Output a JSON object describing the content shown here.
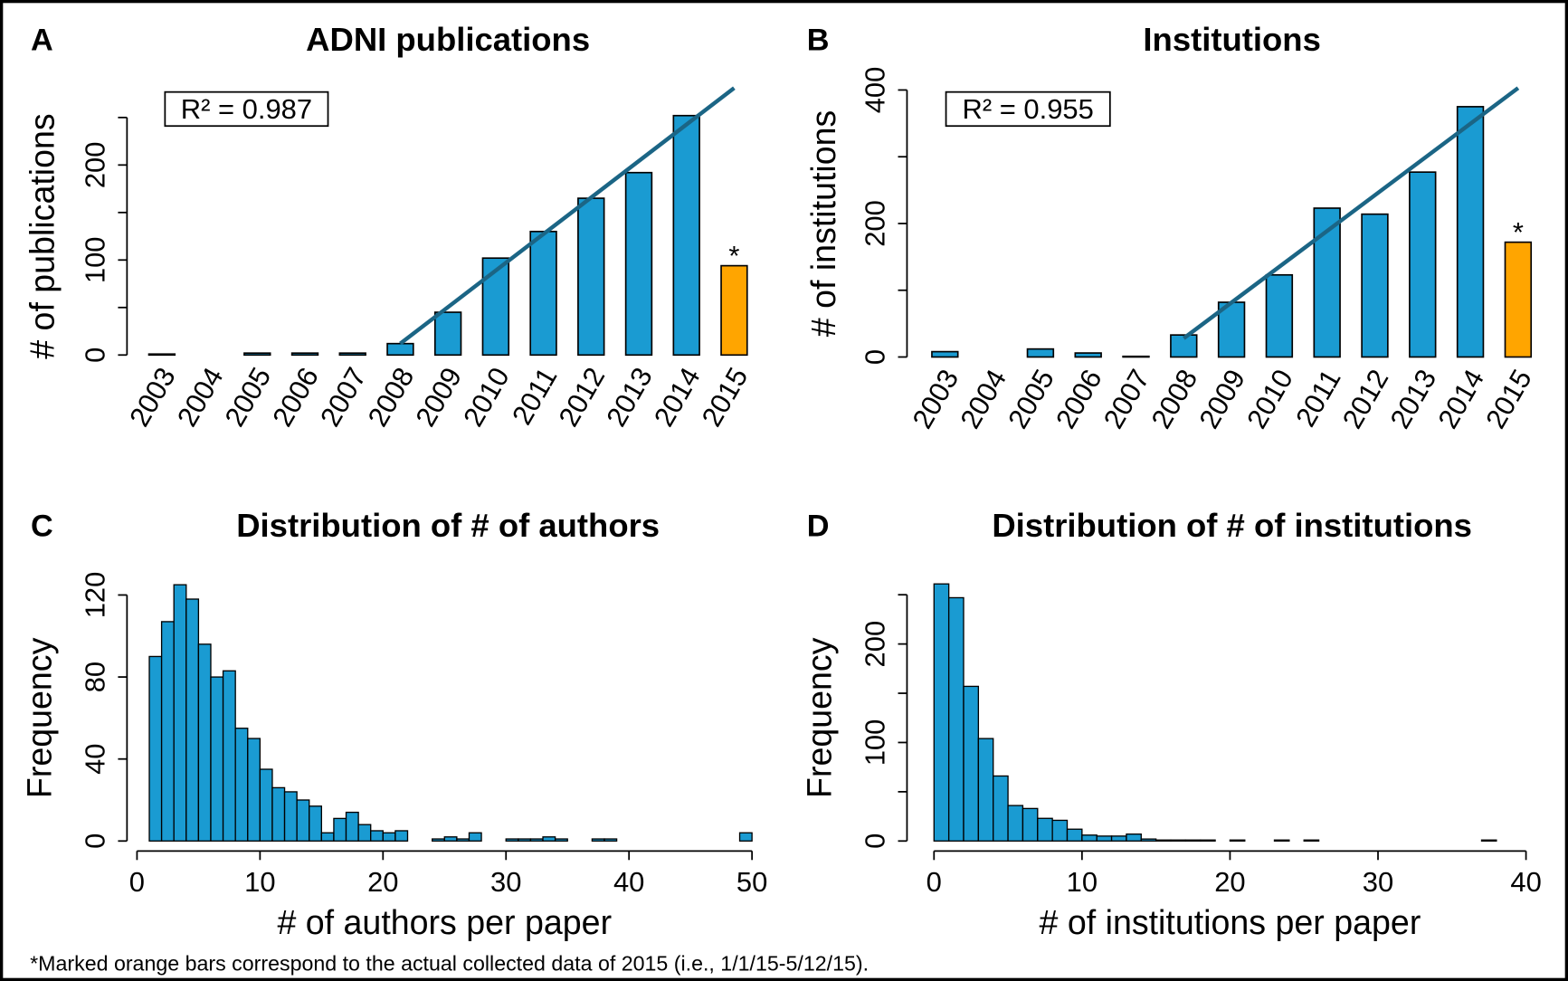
{
  "chart_data": [
    {
      "type": "bar",
      "panel": "A",
      "title": "ADNI publications",
      "ylabel": "# of publications",
      "categories": [
        "2003",
        "2004",
        "2005",
        "2006",
        "2007",
        "2008",
        "2009",
        "2010",
        "2011",
        "2012",
        "2013",
        "2014",
        "2015"
      ],
      "values": [
        1,
        0,
        2,
        2,
        2,
        12,
        45,
        102,
        130,
        165,
        192,
        252,
        94
      ],
      "color": "#1a9bd2",
      "highlight": {
        "category": "2015",
        "color": "#ffa500",
        "marker": "*"
      },
      "trend": {
        "x": [
          "2008",
          "2015"
        ],
        "values": [
          12,
          281
        ],
        "color": "#1b6585"
      },
      "annotation": "R² = 0.987",
      "ylim": [
        0,
        290
      ],
      "yticks": [
        0,
        100,
        200
      ],
      "minor_yticks": [
        50,
        150,
        250
      ]
    },
    {
      "type": "bar",
      "panel": "B",
      "title": "Institutions",
      "ylabel": "# of institutions",
      "categories": [
        "2003",
        "2004",
        "2005",
        "2006",
        "2007",
        "2008",
        "2009",
        "2010",
        "2011",
        "2012",
        "2013",
        "2014",
        "2015"
      ],
      "values": [
        8,
        0,
        12,
        6,
        1,
        33,
        82,
        123,
        223,
        214,
        277,
        375,
        172
      ],
      "color": "#1a9bd2",
      "highlight": {
        "category": "2015",
        "color": "#ffa500",
        "marker": "*"
      },
      "trend": {
        "x": [
          "2008",
          "2015"
        ],
        "values": [
          28,
          403
        ],
        "color": "#1b6585"
      },
      "annotation": "R² = 0.955",
      "ylim": [
        0,
        420
      ],
      "yticks": [
        0,
        200,
        400
      ],
      "minor_yticks": [
        100,
        300
      ]
    },
    {
      "type": "histogram",
      "panel": "C",
      "title": "Distribution of # of authors",
      "xlabel": "# of authors per paper",
      "ylabel": "Frequency",
      "bins": [
        1,
        2,
        3,
        4,
        5,
        6,
        7,
        8,
        9,
        10,
        11,
        12,
        13,
        14,
        15,
        16,
        17,
        18,
        19,
        20,
        21,
        22,
        23,
        24,
        25,
        26,
        27,
        28,
        29,
        30,
        31,
        32,
        33,
        34,
        35,
        36,
        37,
        38,
        39,
        40,
        41,
        42,
        43,
        44,
        45,
        46,
        47,
        48,
        49,
        50
      ],
      "values": [
        90,
        107,
        125,
        118,
        96,
        80,
        83,
        55,
        50,
        35,
        26,
        24,
        20,
        17,
        4,
        11,
        14,
        8,
        5,
        4,
        5,
        0,
        0,
        1,
        2,
        1,
        4,
        0,
        0,
        1,
        1,
        1,
        2,
        1,
        0,
        0,
        1,
        1,
        0,
        0,
        0,
        0,
        0,
        0,
        0,
        0,
        0,
        0,
        4
      ],
      "color": "#1a9bd2",
      "xlim": [
        0,
        50
      ],
      "xticks": [
        0,
        10,
        20,
        30,
        40,
        50
      ],
      "ylim": [
        0,
        125
      ],
      "yticks": [
        0,
        40,
        80,
        120
      ]
    },
    {
      "type": "histogram",
      "panel": "D",
      "title": "Distribution of # of institutions",
      "xlabel": "# of institutions per paper",
      "ylabel": "Frequency",
      "bins": [
        0,
        1,
        2,
        3,
        4,
        5,
        6,
        7,
        8,
        9,
        10,
        11,
        12,
        13,
        14,
        15,
        16,
        17,
        18,
        19,
        20,
        21,
        22,
        23,
        24,
        25,
        26,
        27,
        28,
        29,
        30,
        31,
        32,
        33,
        34,
        35,
        36,
        37,
        38
      ],
      "values": [
        261,
        247,
        157,
        104,
        66,
        36,
        33,
        23,
        21,
        12,
        6,
        5,
        5,
        7,
        2,
        1,
        1,
        1,
        1,
        0,
        1,
        0,
        0,
        1,
        0,
        1,
        0,
        0,
        0,
        0,
        0,
        0,
        0,
        0,
        0,
        0,
        0,
        1
      ],
      "color": "#1a9bd2",
      "xlim": [
        0,
        40
      ],
      "xticks": [
        0,
        10,
        20,
        30,
        40
      ],
      "ylim": [
        0,
        270
      ],
      "yticks": [
        0,
        100,
        200
      ],
      "minor_yticks": [
        50,
        150,
        250
      ]
    }
  ],
  "footnote": "*Marked orange bars correspond to the actual collected data of 2015 (i.e., 1/1/15-5/12/15)."
}
